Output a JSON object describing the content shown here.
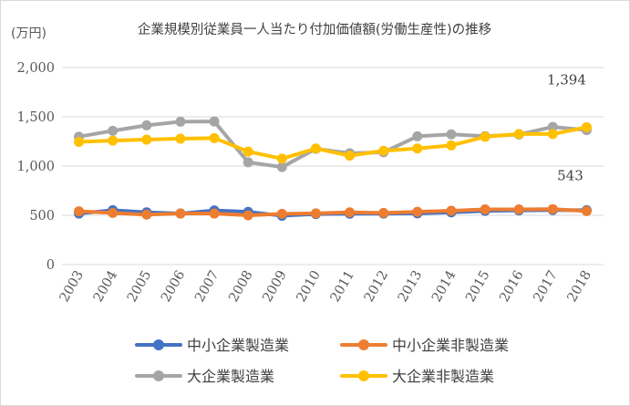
{
  "chart_data": {
    "type": "line",
    "title": "企業規模別従業員一人当たり付加価値額(労働生産性)の推移",
    "ylabel": "(万円)",
    "xlabel": "",
    "categories": [
      "2003",
      "2004",
      "2005",
      "2006",
      "2007",
      "2008",
      "2009",
      "2010",
      "2011",
      "2012",
      "2013",
      "2014",
      "2015",
      "2016",
      "2017",
      "2018"
    ],
    "ylim": [
      0,
      2000
    ],
    "yticks": [
      "0",
      "500",
      "1,000",
      "1,500",
      "2,000"
    ],
    "grid": true,
    "legend": "bottom",
    "series": [
      {
        "name": "中小企業製造業",
        "color": "#4472c4",
        "values": [
          518,
          552,
          530,
          518,
          550,
          535,
          496,
          513,
          516,
          517,
          520,
          530,
          545,
          550,
          553,
          552
        ]
      },
      {
        "name": "中小企業非製造業",
        "color": "#ed7d31",
        "values": [
          541,
          524,
          507,
          518,
          518,
          500,
          515,
          520,
          530,
          524,
          536,
          546,
          560,
          560,
          563,
          543
        ]
      },
      {
        "name": "大企業製造業",
        "color": "#a5a5a5",
        "values": [
          1298,
          1358,
          1413,
          1450,
          1452,
          1038,
          990,
          1175,
          1130,
          1140,
          1302,
          1322,
          1303,
          1320,
          1397,
          1365
        ]
      },
      {
        "name": "大企業非製造業",
        "color": "#ffc000",
        "values": [
          1245,
          1258,
          1268,
          1278,
          1284,
          1147,
          1075,
          1178,
          1105,
          1155,
          1178,
          1210,
          1297,
          1325,
          1325,
          1394
        ]
      }
    ],
    "annotations": [
      {
        "text": "1,394",
        "series": 3,
        "index": 15
      },
      {
        "text": "543",
        "series": 1,
        "index": 15
      }
    ]
  }
}
